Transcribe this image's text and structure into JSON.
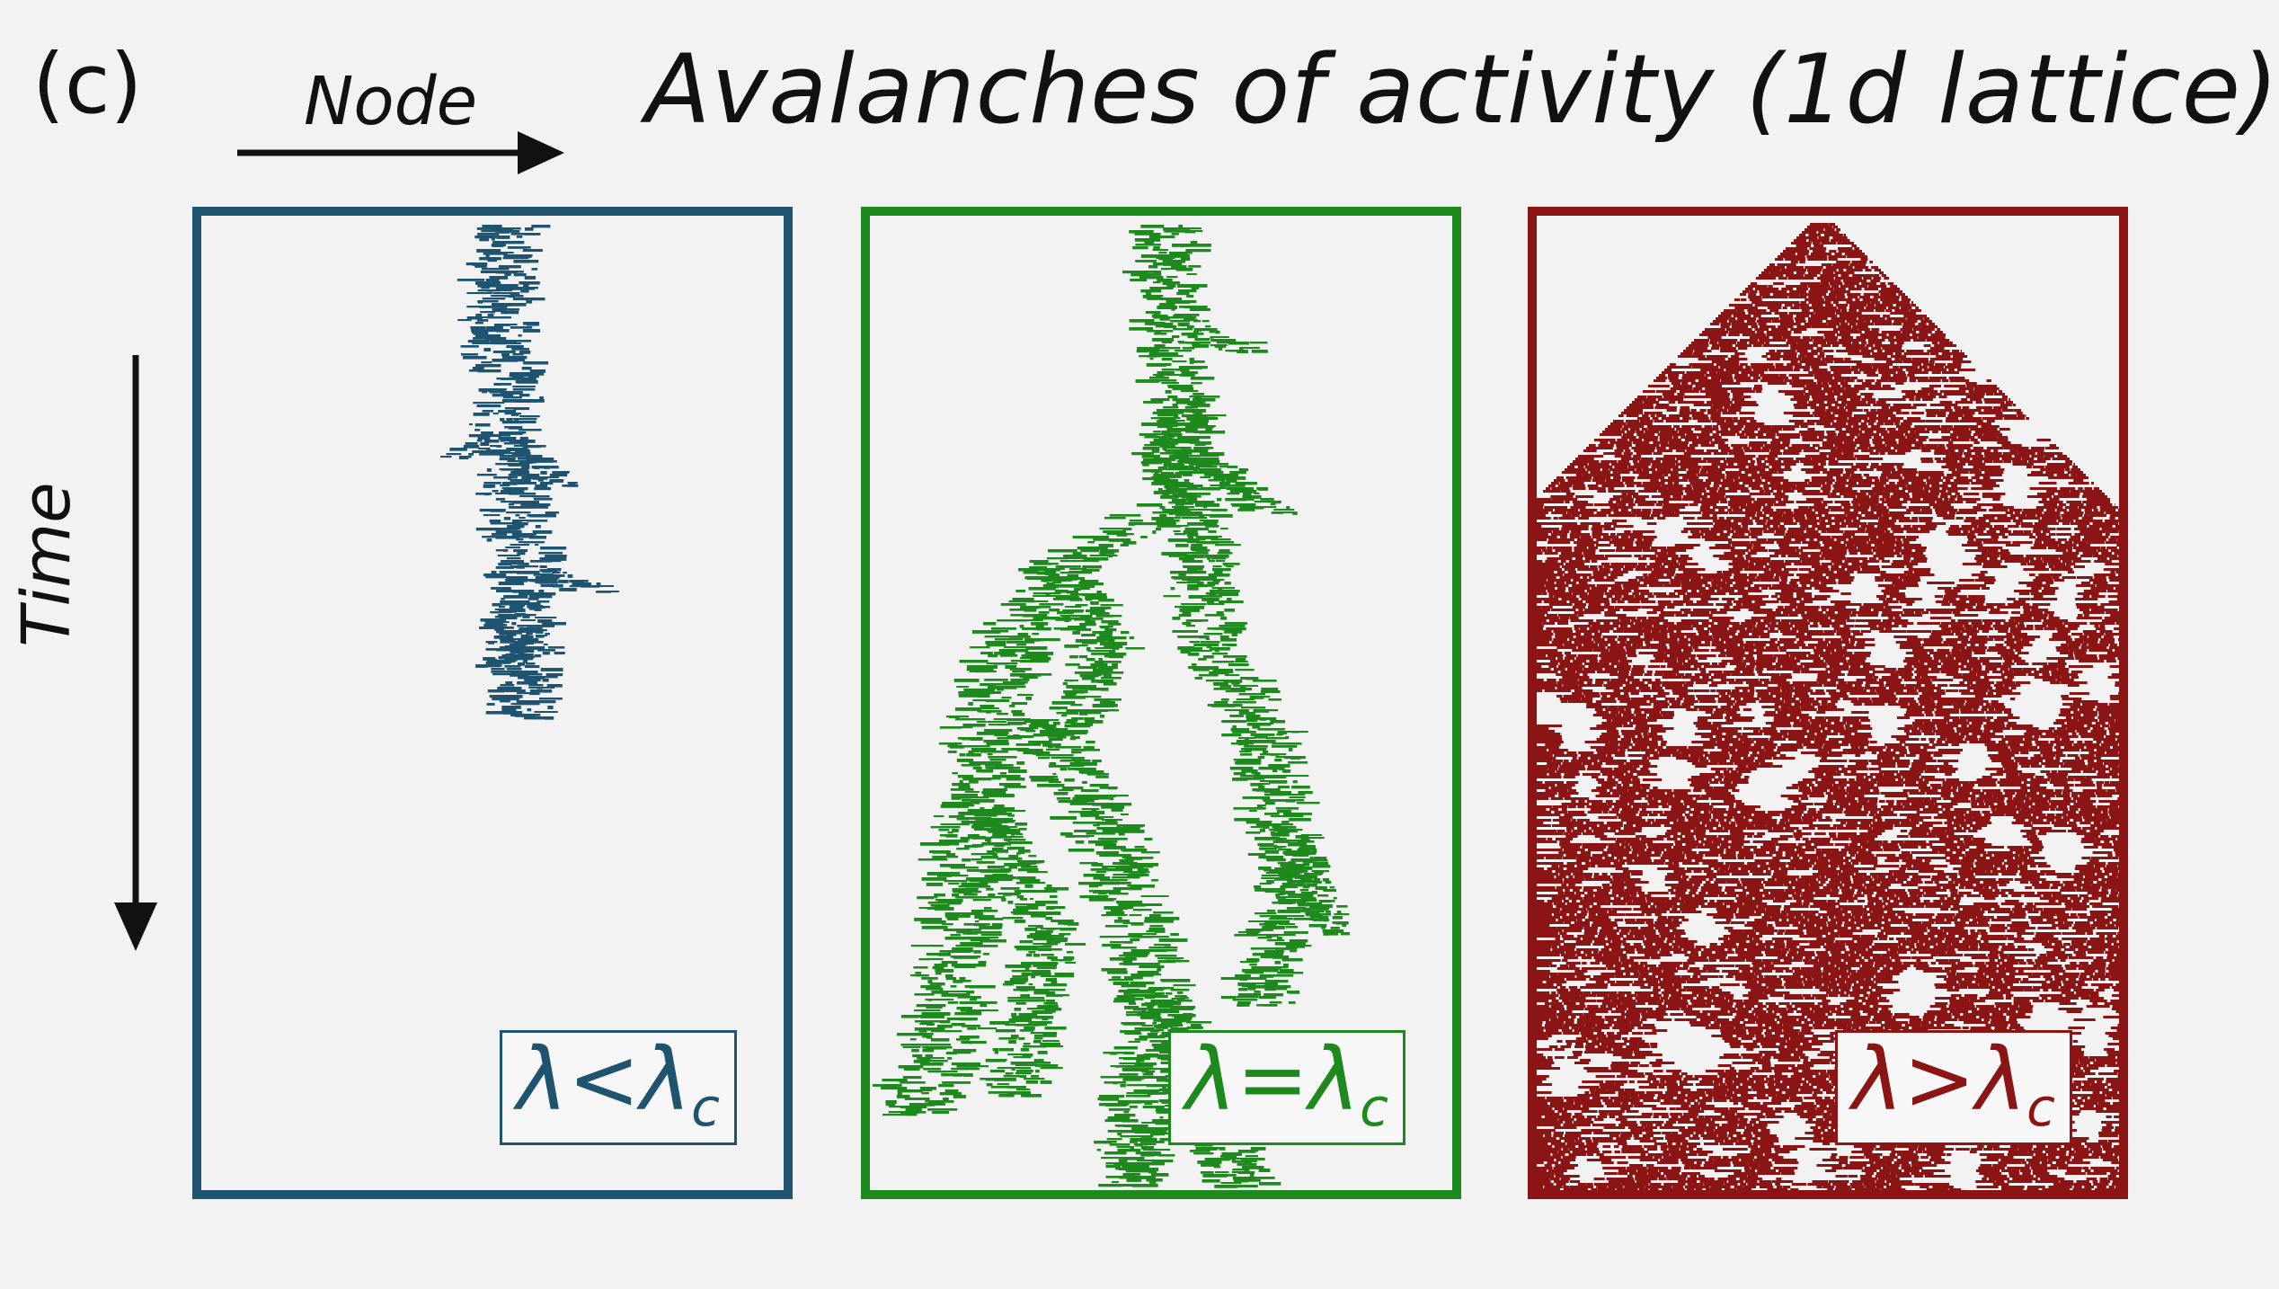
{
  "panel_letter": "(c)",
  "title": "Avalanches of activity (1d lattice)",
  "axes": {
    "x_label": "Node",
    "y_label": "Time"
  },
  "panels": [
    {
      "id": "subcritical",
      "label_main": "λ<λ",
      "label_sub": "c",
      "color": "#1e5470"
    },
    {
      "id": "critical",
      "label_main": "λ=λ",
      "label_sub": "c",
      "color": "#1e8a1e"
    },
    {
      "id": "supercritical",
      "label_main": "λ>λ",
      "label_sub": "c",
      "color": "#8b1414"
    }
  ]
}
